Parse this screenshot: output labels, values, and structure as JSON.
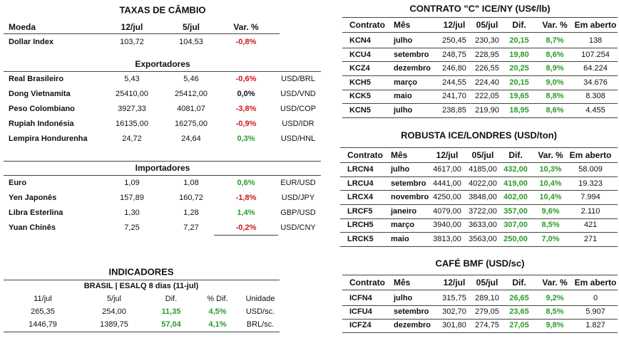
{
  "cambio": {
    "title": "TAXAS DE CÂMBIO",
    "header": [
      "Moeda",
      "12/jul",
      "5/jul",
      "Var. %"
    ],
    "rows": [
      [
        "Dollar Index",
        "103,72",
        "104,53",
        "-0,8%"
      ]
    ],
    "exportadores": {
      "title": "Exportadores",
      "rows": [
        [
          "Real Brasileiro",
          "5,43",
          "5,46",
          "-0,6%",
          "USD/BRL"
        ],
        [
          "Dong Vietnamita",
          "25410,00",
          "25412,00",
          "0,0%",
          "USD/VND"
        ],
        [
          "Peso Colombiano",
          "3927,33",
          "4081,07",
          "-3,8%",
          "USD/COP"
        ],
        [
          "Rupiah Indonésia",
          "16135,00",
          "16275,00",
          "-0,9%",
          "USD/IDR"
        ],
        [
          "Lempira Hondurenha",
          "24,72",
          "24,64",
          "0,3%",
          "USD/HNL"
        ]
      ]
    },
    "importadores": {
      "title": "Importadores",
      "rows": [
        [
          "Euro",
          "1,09",
          "1,08",
          "0,6%",
          "EUR/USD"
        ],
        [
          "Yen Japonês",
          "157,89",
          "160,72",
          "-1,8%",
          "USD/JPY"
        ],
        [
          "Libra Esterlina",
          "1,30",
          "1,28",
          "1,4%",
          "GBP/USD"
        ],
        [
          "Yuan Chinês",
          "7,25",
          "7,27",
          "-0,2%",
          "USD/CNY"
        ]
      ]
    }
  },
  "indicadores": {
    "title": "INDICADORES",
    "subtitle": "BRASIL | ESALQ 8 dias (11-jul)",
    "header": [
      "11/jul",
      "5/jul",
      "Dif.",
      "% Dif.",
      "Unidade"
    ],
    "rows": [
      [
        "265,35",
        "254,00",
        "11,35",
        "4,5%",
        "USD/sc."
      ],
      [
        "1446,79",
        "1389,75",
        "57,04",
        "4,1%",
        "BRL/sc."
      ]
    ]
  },
  "arabica": {
    "title": "CONTRATO \"C\" ICE/NY (US¢/lb)",
    "header": [
      "Contrato",
      "Mês",
      "12/jul",
      "05/jul",
      "Dif.",
      "Var. %",
      "Em aberto"
    ],
    "rows": [
      [
        "KCN4",
        "julho",
        "250,45",
        "230,30",
        "20,15",
        "8,7%",
        "138"
      ],
      [
        "KCU4",
        "setembro",
        "248,75",
        "228,95",
        "19,80",
        "8,6%",
        "107.254"
      ],
      [
        "KCZ4",
        "dezembro",
        "246,80",
        "226,55",
        "20,25",
        "8,9%",
        "64.224"
      ],
      [
        "KCH5",
        "março",
        "244,55",
        "224,40",
        "20,15",
        "9,0%",
        "34.676"
      ],
      [
        "KCK5",
        "maio",
        "241,70",
        "222,05",
        "19,65",
        "8,8%",
        "8.308"
      ],
      [
        "KCN5",
        "julho",
        "238,85",
        "219,90",
        "18,95",
        "8,6%",
        "4.455"
      ]
    ]
  },
  "robusta": {
    "title": "ROBUSTA ICE/LONDRES (USD/ton)",
    "header": [
      "Contrato",
      "Mês",
      "12/jul",
      "05/jul",
      "Dif.",
      "Var. %",
      "Em aberto"
    ],
    "rows": [
      [
        "LRCN4",
        "julho",
        "4617,00",
        "4185,00",
        "432,00",
        "10,3%",
        "58.009"
      ],
      [
        "LRCU4",
        "setembro",
        "4441,00",
        "4022,00",
        "419,00",
        "10,4%",
        "19.323"
      ],
      [
        "LRCX4",
        "novembro",
        "4250,00",
        "3848,00",
        "402,00",
        "10,4%",
        "7.994"
      ],
      [
        "LRCF5",
        "janeiro",
        "4079,00",
        "3722,00",
        "357,00",
        "9,6%",
        "2.110"
      ],
      [
        "LRCH5",
        "março",
        "3940,00",
        "3633,00",
        "307,00",
        "8,5%",
        "421"
      ],
      [
        "LRCK5",
        "maio",
        "3813,00",
        "3563,00",
        "250,00",
        "7,0%",
        "271"
      ]
    ]
  },
  "bmf": {
    "title": "CAFÉ BMF (USD/sc)",
    "header": [
      "Contrato",
      "Mês",
      "12/jul",
      "05/jul",
      "Dif.",
      "Var. %",
      "Em aberto"
    ],
    "rows": [
      [
        "ICFN4",
        "julho",
        "315,75",
        "289,10",
        "26,65",
        "9,2%",
        "0"
      ],
      [
        "ICFU4",
        "setembro",
        "302,70",
        "279,05",
        "23,65",
        "8,5%",
        "5.907"
      ],
      [
        "ICFZ4",
        "dezembro",
        "301,80",
        "274,75",
        "27,05",
        "9,8%",
        "1.827"
      ]
    ]
  }
}
